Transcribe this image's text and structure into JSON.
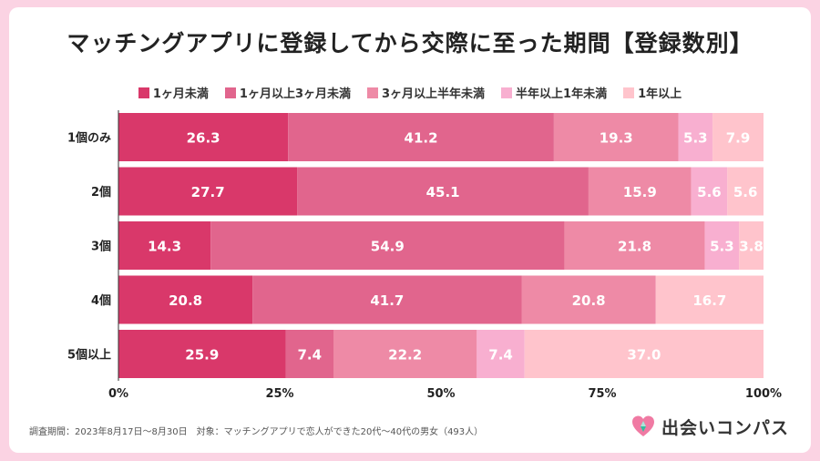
{
  "title": "マッチングアプリに登録してから交際に至った期間【登録数別】",
  "footnote": "調査期間：2023年8月17日〜8月30日　対象：マッチングアプリで恋人ができた20代〜40代の男女（493人）",
  "logo_text": "出会いコンパス",
  "logo_icon": "compass-heart-icon",
  "chart_data": {
    "type": "bar",
    "orientation": "horizontal",
    "stacked": true,
    "normalized": true,
    "title": "マッチングアプリに登録してから交際に至った期間【登録数別】",
    "categories": [
      "1個のみ",
      "2個",
      "3個",
      "4個",
      "5個以上"
    ],
    "series": [
      {
        "name": "1ヶ月未満",
        "color": "#d9386a",
        "values": [
          26.3,
          27.7,
          14.3,
          20.8,
          25.9
        ]
      },
      {
        "name": "1ヶ月以上3ヶ月未満",
        "color": "#e1658d",
        "values": [
          41.2,
          45.1,
          54.9,
          41.7,
          7.4
        ]
      },
      {
        "name": "3ヶ月以上半年未満",
        "color": "#ee8aa6",
        "values": [
          19.3,
          15.9,
          21.8,
          20.8,
          22.2
        ]
      },
      {
        "name": "半年以上1年未満",
        "color": "#f8afd0",
        "values": [
          5.3,
          5.6,
          5.3,
          0,
          7.4
        ]
      },
      {
        "name": "1年以上",
        "color": "#ffc4cc",
        "values": [
          7.9,
          5.6,
          3.8,
          16.7,
          37.0
        ]
      }
    ],
    "xticks": [
      "0%",
      "25%",
      "50%",
      "75%",
      "100%"
    ],
    "xlim": [
      0,
      100
    ],
    "legend": "top",
    "grid": false
  }
}
